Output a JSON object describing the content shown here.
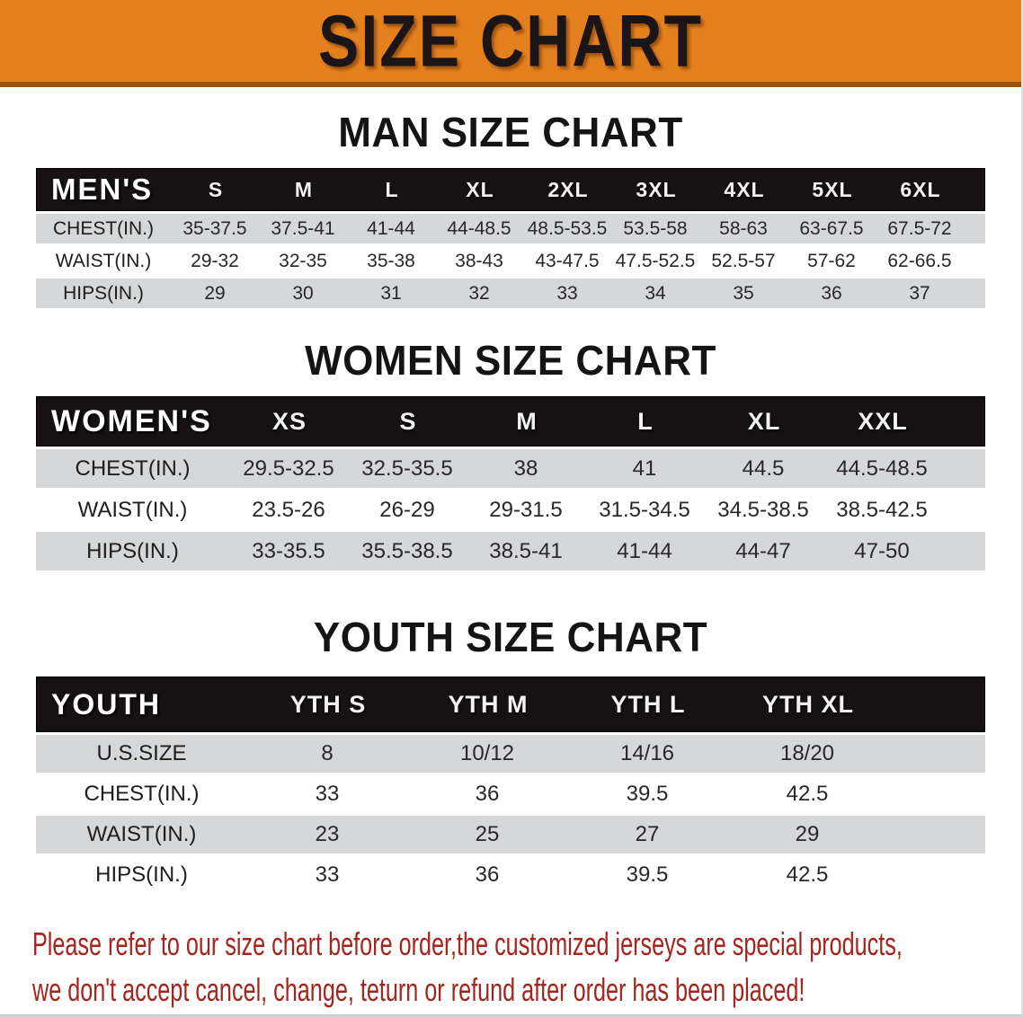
{
  "banner": {
    "title": "SIZE CHART"
  },
  "colors": {
    "banner_bg": "#e5801e",
    "banner_border": "#9b5512",
    "table_header_bg": "#161214",
    "row_gray": "#d6d7d8",
    "disclaimer_red": "#a6241e"
  },
  "sections": [
    {
      "heading": "MAN SIZE CHART",
      "group_label": "MEN'S",
      "columns": [
        "S",
        "M",
        "L",
        "XL",
        "2XL",
        "3XL",
        "4XL",
        "5XL",
        "6XL"
      ],
      "rows": [
        {
          "label": "CHEST(IN.)",
          "values": [
            "35-37.5",
            "37.5-41",
            "41-44",
            "44-48.5",
            "48.5-53.5",
            "53.5-58",
            "58-63",
            "63-67.5",
            "67.5-72"
          ]
        },
        {
          "label": "WAIST(IN.)",
          "values": [
            "29-32",
            "32-35",
            "35-38",
            "38-43",
            "43-47.5",
            "47.5-52.5",
            "52.5-57",
            "57-62",
            "62-66.5"
          ]
        },
        {
          "label": "HIPS(IN.)",
          "values": [
            "29",
            "30",
            "31",
            "32",
            "33",
            "34",
            "35",
            "36",
            "37"
          ]
        }
      ]
    },
    {
      "heading": "WOMEN SIZE CHART",
      "group_label": "WOMEN'S",
      "columns": [
        "XS",
        "S",
        "M",
        "L",
        "XL",
        "XXL"
      ],
      "rows": [
        {
          "label": "CHEST(IN.)",
          "values": [
            "29.5-32.5",
            "32.5-35.5",
            "38",
            "41",
            "44.5",
            "44.5-48.5"
          ]
        },
        {
          "label": "WAIST(IN.)",
          "values": [
            "23.5-26",
            "26-29",
            "29-31.5",
            "31.5-34.5",
            "34.5-38.5",
            "38.5-42.5"
          ]
        },
        {
          "label": "HIPS(IN.)",
          "values": [
            "33-35.5",
            "35.5-38.5",
            "38.5-41",
            "41-44",
            "44-47",
            "47-50"
          ]
        }
      ]
    },
    {
      "heading": "YOUTH SIZE CHART",
      "group_label": "YOUTH",
      "columns": [
        "YTH S",
        "YTH M",
        "YTH L",
        "YTH XL"
      ],
      "rows": [
        {
          "label": "U.S.SIZE",
          "values": [
            "8",
            "10/12",
            "14/16",
            "18/20"
          ]
        },
        {
          "label": "CHEST(IN.)",
          "values": [
            "33",
            "36",
            "39.5",
            "42.5"
          ]
        },
        {
          "label": "WAIST(IN.)",
          "values": [
            "23",
            "25",
            "27",
            "29"
          ]
        },
        {
          "label": "HIPS(IN.)",
          "values": [
            "33",
            "36",
            "39.5",
            "42.5"
          ]
        }
      ]
    }
  ],
  "disclaimer": {
    "line1": "Please refer to our size chart before order,the customized jerseys are special products,",
    "line2": "we don't accept cancel, change, teturn or refund after order has been placed!"
  }
}
